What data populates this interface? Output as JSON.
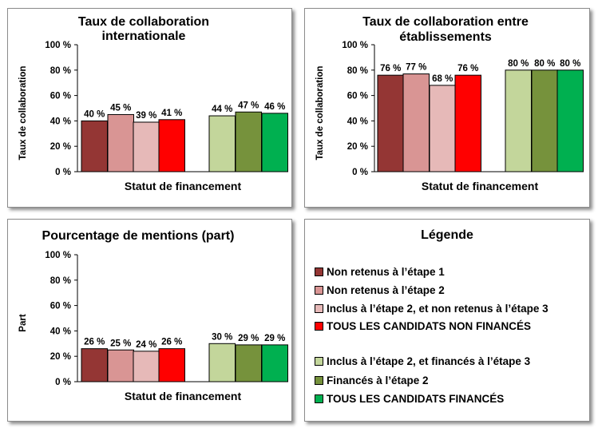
{
  "colors": {
    "non_retenus_1": "#943634",
    "non_retenus_2": "#D99594",
    "inclus_non_retenus_3": "#E6B9B8",
    "tous_non_finances": "#FF0000",
    "inclus_finances_3": "#C3D69B",
    "finances_2": "#76923C",
    "tous_finances": "#00B050"
  },
  "chart_data": [
    {
      "type": "bar",
      "title": "Taux de collaboration internationale",
      "title_lines": [
        "Taux de collaboration",
        "internationale"
      ],
      "ylabel": "Taux de collaboration",
      "xlabel": "Statut de financement",
      "ylim": [
        0,
        100
      ],
      "yticks": [
        "0 %",
        "20 %",
        "40 %",
        "60 %",
        "80 %",
        "100 %"
      ],
      "series": [
        {
          "name": "Non retenus à l’étape 1",
          "value": 40,
          "label": "40 %",
          "color_key": "non_retenus_1"
        },
        {
          "name": "Non retenus à l’étape 2",
          "value": 45,
          "label": "45 %",
          "color_key": "non_retenus_2"
        },
        {
          "name": "Inclus à l’étape 2, et non retenus à l’étape 3",
          "value": 39,
          "label": "39 %",
          "color_key": "inclus_non_retenus_3"
        },
        {
          "name": "TOUS LES CANDIDATS NON FINANCÉS",
          "value": 41,
          "label": "41 %",
          "color_key": "tous_non_finances"
        },
        {
          "name": "Inclus à l’étape 2, et financés à l’étape 3",
          "value": 44,
          "label": "44 %",
          "color_key": "inclus_finances_3"
        },
        {
          "name": "Financés à l’étape 2",
          "value": 47,
          "label": "47 %",
          "color_key": "finances_2"
        },
        {
          "name": "TOUS LES CANDIDATS FINANCÉS",
          "value": 46,
          "label": "46 %",
          "color_key": "tous_finances"
        }
      ]
    },
    {
      "type": "bar",
      "title": "Taux de collaboration entre établissements",
      "title_lines": [
        "Taux de collaboration  entre",
        "établissements"
      ],
      "ylabel": "Taux de collaboration",
      "xlabel": "Statut de financement",
      "ylim": [
        0,
        100
      ],
      "yticks": [
        "0 %",
        "20 %",
        "40 %",
        "60 %",
        "80 %",
        "100 %"
      ],
      "series": [
        {
          "name": "Non retenus à l’étape 1",
          "value": 76,
          "label": "76 %",
          "color_key": "non_retenus_1"
        },
        {
          "name": "Non retenus à l’étape 2",
          "value": 77,
          "label": "77 %",
          "color_key": "non_retenus_2"
        },
        {
          "name": "Inclus à l’étape 2, et non retenus à l’étape 3",
          "value": 68,
          "label": "68 %",
          "color_key": "inclus_non_retenus_3"
        },
        {
          "name": "TOUS LES CANDIDATS NON FINANCÉS",
          "value": 76,
          "label": "76 %",
          "color_key": "tous_non_finances"
        },
        {
          "name": "Inclus à l’étape 2, et financés à l’étape 3",
          "value": 80,
          "label": "80 %",
          "color_key": "inclus_finances_3"
        },
        {
          "name": "Financés à l’étape 2",
          "value": 80,
          "label": "80 %",
          "color_key": "finances_2"
        },
        {
          "name": "TOUS LES CANDIDATS FINANCÉS",
          "value": 80,
          "label": "80 %",
          "color_key": "tous_finances"
        }
      ]
    },
    {
      "type": "bar",
      "title": "Pourcentage de mentions (part)",
      "title_lines": [
        "Pourcentage de mentions (part)"
      ],
      "ylabel": "Part",
      "xlabel": "Statut de financement",
      "ylim": [
        0,
        100
      ],
      "yticks": [
        "0 %",
        "20 %",
        "40 %",
        "60 %",
        "80 %",
        "100 %"
      ],
      "series": [
        {
          "name": "Non retenus à l’étape 1",
          "value": 26,
          "label": "26 %",
          "color_key": "non_retenus_1"
        },
        {
          "name": "Non retenus à l’étape 2",
          "value": 25,
          "label": "25 %",
          "color_key": "non_retenus_2"
        },
        {
          "name": "Inclus à l’étape 2, et non retenus à l’étape 3",
          "value": 24,
          "label": "24 %",
          "color_key": "inclus_non_retenus_3"
        },
        {
          "name": "TOUS LES CANDIDATS NON FINANCÉS",
          "value": 26,
          "label": "26 %",
          "color_key": "tous_non_finances"
        },
        {
          "name": "Inclus à l’étape 2, et financés à l’étape 3",
          "value": 30,
          "label": "30 %",
          "color_key": "inclus_finances_3"
        },
        {
          "name": "Financés à l’étape 2",
          "value": 29,
          "label": "29 %",
          "color_key": "finances_2"
        },
        {
          "name": "TOUS LES CANDIDATS FINANCÉS",
          "value": 29,
          "label": "29 %",
          "color_key": "tous_finances"
        }
      ]
    }
  ],
  "legend": {
    "title": "Légende",
    "items": [
      {
        "label": "Non retenus à l’étape 1",
        "color_key": "non_retenus_1"
      },
      {
        "label": "Non retenus à l’étape 2",
        "color_key": "non_retenus_2"
      },
      {
        "label": "Inclus à l’étape 2, et non retenus à l’étape 3",
        "color_key": "inclus_non_retenus_3"
      },
      {
        "label": "TOUS LES CANDIDATS NON FINANCÉS",
        "color_key": "tous_non_finances"
      },
      {
        "label": "Inclus à l’étape 2, et financés à l’étape 3",
        "color_key": "inclus_finances_3"
      },
      {
        "label": "Financés à l’étape 2",
        "color_key": "finances_2"
      },
      {
        "label": "TOUS LES CANDIDATS FINANCÉS",
        "color_key": "tous_finances"
      }
    ]
  }
}
